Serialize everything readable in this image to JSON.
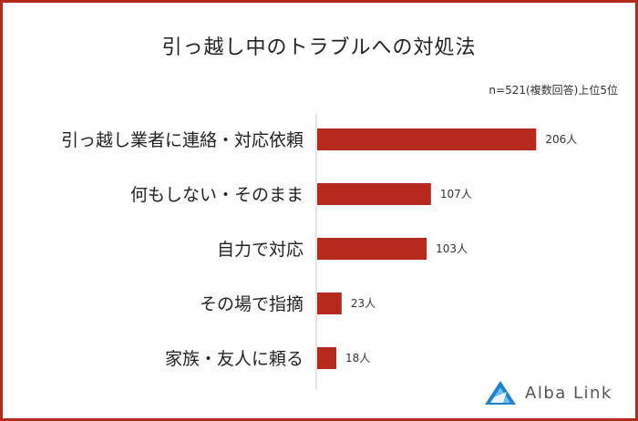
{
  "chart_data": {
    "type": "bar",
    "orientation": "horizontal",
    "title": "引っ越し中のトラブルへの対処法",
    "note": "n=521(複数回答)上位5位",
    "categories": [
      "引っ越し業者に連絡・対応依頼",
      "何もしない・そのまま",
      "自力で対応",
      "その場で指摘",
      "家族・友人に頼る"
    ],
    "values": [
      206,
      107,
      103,
      23,
      18
    ],
    "value_labels": [
      "206人",
      "107人",
      "103人",
      "23人",
      "18人"
    ],
    "unit": "人",
    "xlim": [
      0,
      240
    ],
    "grid": false,
    "bar_color": "#b52a1d"
  },
  "branding": {
    "logo_text": "Alba Link",
    "logo_icon": "alba-link-triangle-icon",
    "logo_color": "#1f7fd0"
  }
}
